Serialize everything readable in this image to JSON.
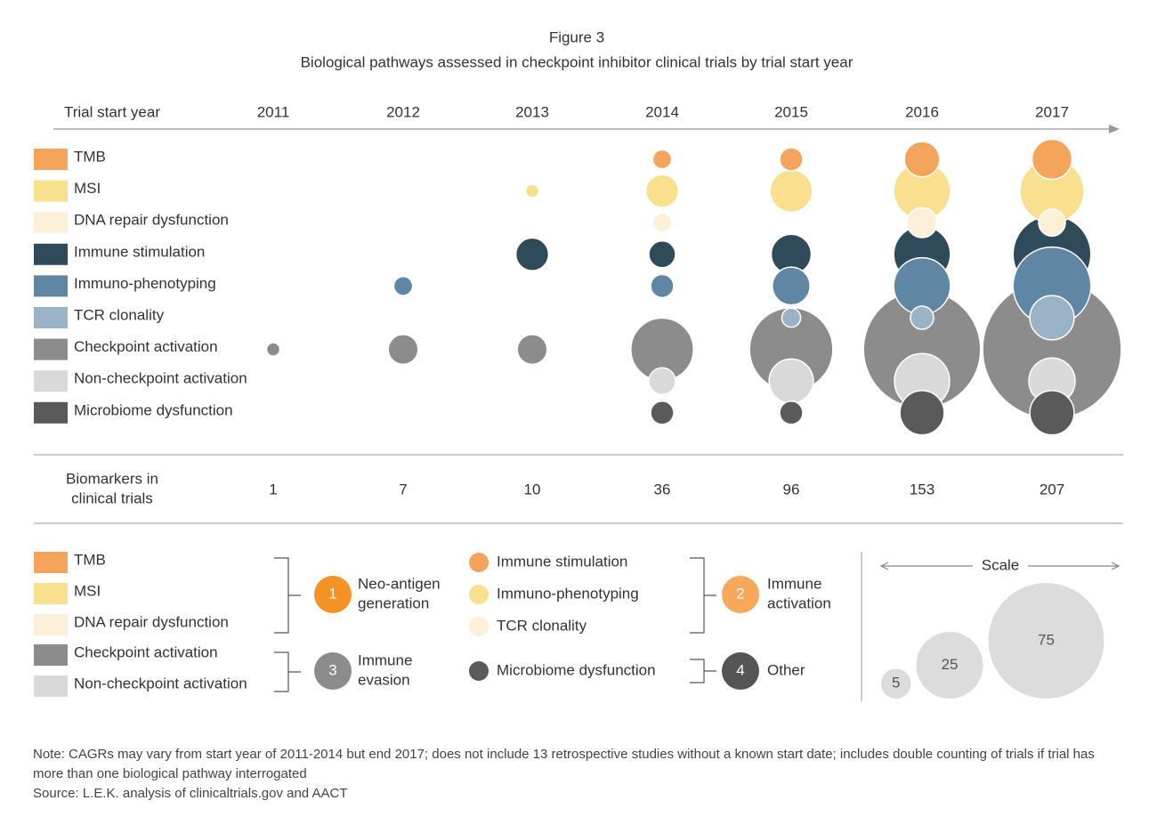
{
  "chart_data": {
    "type": "bubble",
    "title": "Figure 3",
    "subtitle": "Biological pathways assessed in checkpoint inhibitor clinical trials by trial start year",
    "x_label": "Trial start year",
    "categories": [
      "2011",
      "2012",
      "2013",
      "2014",
      "2015",
      "2016",
      "2017"
    ],
    "series": [
      {
        "name": "TMB",
        "color": "#f5a55b",
        "values": [
          null,
          null,
          null,
          2,
          3,
          7,
          9
        ]
      },
      {
        "name": "MSI",
        "color": "#f8e08e",
        "values": [
          null,
          null,
          1,
          6,
          10,
          18,
          23
        ]
      },
      {
        "name": "DNA repair dysfunction",
        "color": "#fcf0d8",
        "values": [
          null,
          null,
          null,
          2,
          null,
          5,
          4
        ]
      },
      {
        "name": "Immune stimulation",
        "color": "#2f4b5a",
        "values": [
          null,
          null,
          6,
          4,
          9,
          18,
          34
        ]
      },
      {
        "name": "Immuno-phenotyping",
        "color": "#5f87a3",
        "values": [
          null,
          2,
          null,
          3,
          8,
          18,
          34
        ]
      },
      {
        "name": "TCR clonality",
        "color": "#9ab3c6",
        "values": [
          null,
          null,
          null,
          null,
          2,
          3,
          11
        ]
      },
      {
        "name": "Checkpoint activation",
        "color": "#8c8c8c",
        "values": [
          1,
          5,
          5,
          22,
          39,
          77,
          108
        ]
      },
      {
        "name": "Non-checkpoint activation",
        "color": "#d9d9d9",
        "values": [
          null,
          null,
          null,
          4,
          11,
          17,
          12
        ]
      },
      {
        "name": "Microbiome dysfunction",
        "color": "#5a5a5a",
        "values": [
          null,
          null,
          null,
          3,
          3,
          11,
          11
        ]
      }
    ],
    "totals": {
      "label": [
        "Biomarkers in",
        "clinical trials"
      ],
      "values": [
        1,
        7,
        10,
        36,
        96,
        153,
        207
      ]
    },
    "groups": [
      {
        "number": "1",
        "label": [
          "Neo-antigen",
          "generation"
        ],
        "color": "#f39325",
        "marker": "square",
        "items": [
          {
            "name": "TMB",
            "color": "#f5a55b"
          },
          {
            "name": "MSI",
            "color": "#f8e08e"
          },
          {
            "name": "DNA repair dysfunction",
            "color": "#fcf0d8"
          }
        ]
      },
      {
        "number": "2",
        "label": [
          "Immune",
          "activation"
        ],
        "color": "#f7a85a",
        "marker": "circle",
        "items": [
          {
            "name": "Immune stimulation",
            "color": "#f5a55b"
          },
          {
            "name": "Immuno-phenotyping",
            "color": "#f8e08e"
          },
          {
            "name": "TCR clonality",
            "color": "#fcf0d8"
          }
        ]
      },
      {
        "number": "3",
        "label": [
          "Immune",
          "evasion"
        ],
        "color": "#8c8c8c",
        "marker": "square",
        "items": [
          {
            "name": "Checkpoint activation",
            "color": "#8c8c8c"
          },
          {
            "name": "Non-checkpoint activation",
            "color": "#d9d9d9"
          }
        ]
      },
      {
        "number": "4",
        "label": [
          "Other"
        ],
        "color": "#555555",
        "marker": "circle",
        "items": [
          {
            "name": "Microbiome dysfunction",
            "color": "#5a5a5a"
          }
        ]
      }
    ],
    "scale": {
      "label": "Scale",
      "color": "#dcdcdc",
      "values": [
        5,
        25,
        75
      ]
    }
  },
  "note": "Note: CAGRs may vary from start year of 2011-2014 but end 2017; does not include 13 retrospective studies without a known start date; includes double counting of trials if trial has more than one biological pathway interrogated",
  "source": "Source: L.E.K. analysis of clinicaltrials.gov and AACT"
}
